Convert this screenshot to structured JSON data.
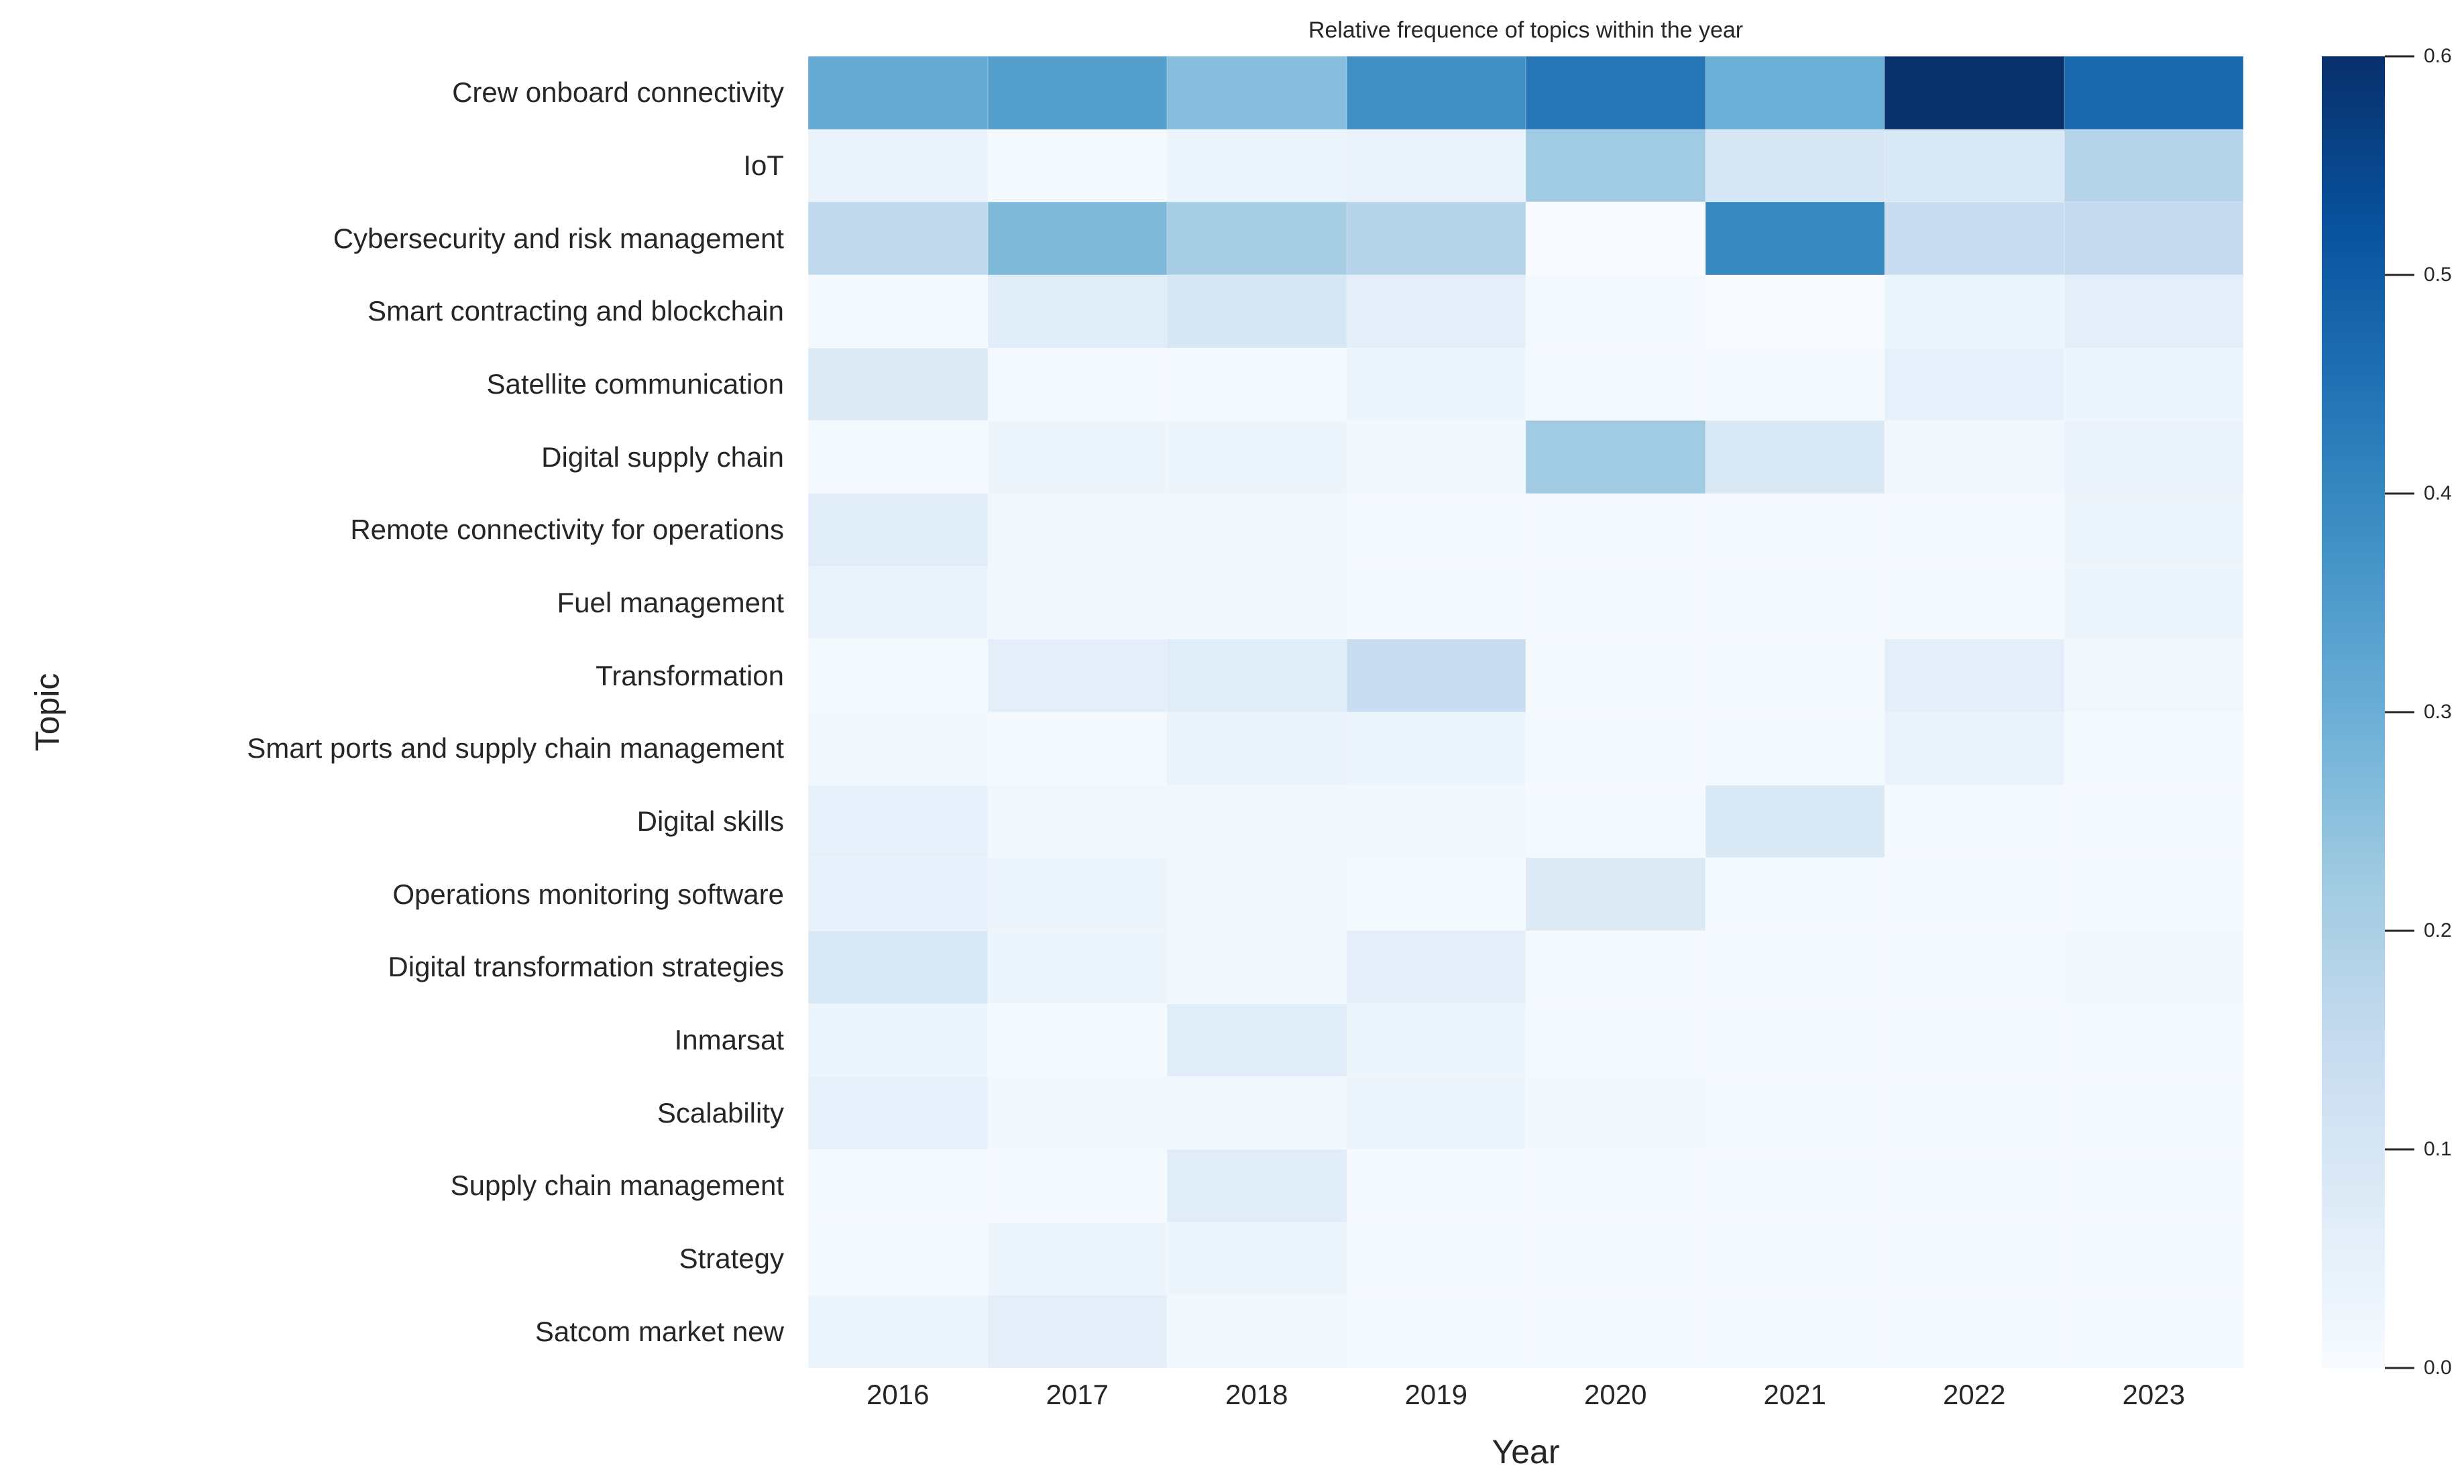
{
  "title": "Relative frequence of topics within the year",
  "chart_data": {
    "type": "heatmap",
    "title": "Relative frequence of topics within the year",
    "xlabel": "Year",
    "ylabel": "Topic",
    "x": [
      "2016",
      "2017",
      "2018",
      "2019",
      "2020",
      "2021",
      "2022",
      "2023"
    ],
    "rows": [
      {
        "topic": "Crew onboard connectivity",
        "values": [
          0.31,
          0.34,
          0.26,
          0.38,
          0.44,
          0.3,
          0.6,
          0.47
        ]
      },
      {
        "topic": "IoT",
        "values": [
          0.04,
          0.01,
          0.03,
          0.04,
          0.22,
          0.1,
          0.09,
          0.18
        ]
      },
      {
        "topic": "Cybersecurity and risk management",
        "values": [
          0.16,
          0.27,
          0.21,
          0.18,
          0.0,
          0.4,
          0.14,
          0.15
        ]
      },
      {
        "topic": "Smart contracting and blockchain",
        "values": [
          0.01,
          0.07,
          0.1,
          0.06,
          0.01,
          0.0,
          0.03,
          0.06
        ]
      },
      {
        "topic": "Satellite communication",
        "values": [
          0.08,
          0.01,
          0.01,
          0.03,
          0.01,
          0.01,
          0.05,
          0.03
        ]
      },
      {
        "topic": "Digital supply chain",
        "values": [
          0.01,
          0.03,
          0.03,
          0.02,
          0.22,
          0.09,
          0.02,
          0.04
        ]
      },
      {
        "topic": "Remote connectivity for operations",
        "values": [
          0.07,
          0.02,
          0.02,
          0.01,
          0.01,
          0.01,
          0.01,
          0.03
        ]
      },
      {
        "topic": "Fuel management",
        "values": [
          0.04,
          0.02,
          0.02,
          0.01,
          0.01,
          0.01,
          0.01,
          0.03
        ]
      },
      {
        "topic": "Transformation",
        "values": [
          0.01,
          0.06,
          0.07,
          0.14,
          0.01,
          0.01,
          0.06,
          0.02
        ]
      },
      {
        "topic": "Smart ports and supply chain management",
        "values": [
          0.02,
          0.01,
          0.04,
          0.03,
          0.01,
          0.01,
          0.04,
          0.01
        ]
      },
      {
        "topic": "Digital skills",
        "values": [
          0.05,
          0.02,
          0.02,
          0.02,
          0.01,
          0.09,
          0.01,
          0.01
        ]
      },
      {
        "topic": "Operations monitoring software",
        "values": [
          0.05,
          0.03,
          0.02,
          0.01,
          0.08,
          0.01,
          0.01,
          0.01
        ]
      },
      {
        "topic": "Digital transformation strategies",
        "values": [
          0.09,
          0.03,
          0.02,
          0.06,
          0.01,
          0.01,
          0.01,
          0.02
        ]
      },
      {
        "topic": "Inmarsat",
        "values": [
          0.03,
          0.01,
          0.07,
          0.03,
          0.01,
          0.01,
          0.01,
          0.01
        ]
      },
      {
        "topic": "Scalability",
        "values": [
          0.05,
          0.02,
          0.02,
          0.03,
          0.02,
          0.01,
          0.01,
          0.01
        ]
      },
      {
        "topic": "Supply chain management",
        "values": [
          0.01,
          0.01,
          0.07,
          0.01,
          0.01,
          0.01,
          0.01,
          0.01
        ]
      },
      {
        "topic": "Strategy",
        "values": [
          0.01,
          0.03,
          0.03,
          0.01,
          0.01,
          0.01,
          0.01,
          0.01
        ]
      },
      {
        "topic": "Satcom market new",
        "values": [
          0.03,
          0.06,
          0.02,
          0.01,
          0.01,
          0.01,
          0.01,
          0.01
        ]
      }
    ],
    "vmin": 0.0,
    "vmax": 0.6,
    "colormap": "Blues",
    "colormap_anchors": [
      {
        "pos": 0.0,
        "color": "#f7fbff"
      },
      {
        "pos": 0.125,
        "color": "#deebf7"
      },
      {
        "pos": 0.25,
        "color": "#c6dbef"
      },
      {
        "pos": 0.375,
        "color": "#9ecae1"
      },
      {
        "pos": 0.5,
        "color": "#6baed6"
      },
      {
        "pos": 0.625,
        "color": "#4292c6"
      },
      {
        "pos": 0.75,
        "color": "#2171b5"
      },
      {
        "pos": 0.875,
        "color": "#08519c"
      },
      {
        "pos": 1.0,
        "color": "#08306b"
      }
    ],
    "colorbar_ticks": [
      0.0,
      0.1,
      0.2,
      0.3,
      0.4,
      0.5,
      0.6
    ],
    "grid": false,
    "legend_position": "colorbar-right"
  }
}
